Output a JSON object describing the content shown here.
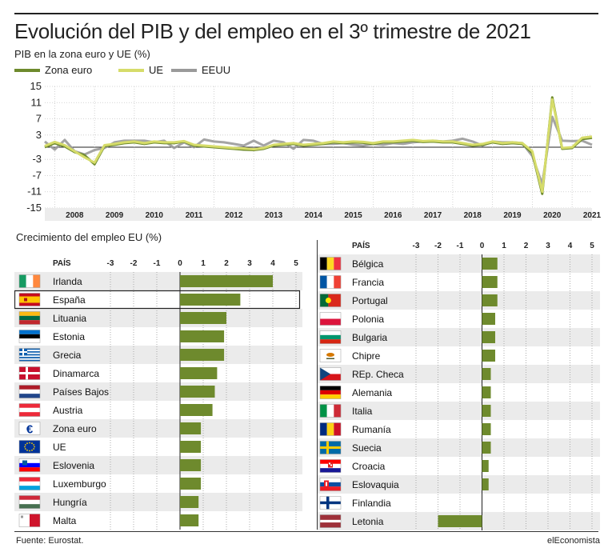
{
  "title": "Evolución del PIB y del empleo en el 3º trimestre de 2021",
  "subtitle": "PIB en la zona euro y UE (%)",
  "employment_title": "Crecimiento del empleo EU (%)",
  "col_header": "PAÍS",
  "source": "Fuente: Eurostat.",
  "brand": "elEconomista",
  "colors": {
    "zona_euro": "#6e8a2d",
    "ue": "#d6dc6a",
    "eeuu": "#9a9a9a",
    "bar": "#6e8a2d",
    "highlight_border": "#222222"
  },
  "chart_data": [
    {
      "type": "line",
      "title": "PIB en la zona euro y UE (%)",
      "x": [
        "2007Q4",
        "2008Q1",
        "2008Q2",
        "2008Q3",
        "2008Q4",
        "2009Q1",
        "2009Q2",
        "2009Q3",
        "2009Q4",
        "2010Q1",
        "2010Q2",
        "2010Q3",
        "2010Q4",
        "2011Q1",
        "2011Q2",
        "2011Q3",
        "2011Q4",
        "2012Q1",
        "2012Q2",
        "2012Q3",
        "2012Q4",
        "2013Q1",
        "2013Q2",
        "2013Q3",
        "2013Q4",
        "2014Q1",
        "2014Q2",
        "2014Q3",
        "2014Q4",
        "2015Q1",
        "2015Q2",
        "2015Q3",
        "2015Q4",
        "2016Q1",
        "2016Q2",
        "2016Q3",
        "2016Q4",
        "2017Q1",
        "2017Q2",
        "2017Q3",
        "2017Q4",
        "2018Q1",
        "2018Q2",
        "2018Q3",
        "2018Q4",
        "2019Q1",
        "2019Q2",
        "2019Q3",
        "2019Q4",
        "2020Q1",
        "2020Q2",
        "2020Q3",
        "2020Q4",
        "2021Q1",
        "2021Q2",
        "2021Q3"
      ],
      "x_tick_labels": [
        "2008",
        "2009",
        "2010",
        "2011",
        "2012",
        "2013",
        "2014",
        "2015",
        "2016",
        "2017",
        "2018",
        "2019",
        "2020",
        "2021"
      ],
      "yticks": [
        15,
        11,
        7,
        3,
        -3,
        -7,
        -11,
        -15
      ],
      "ylim": [
        -15,
        15
      ],
      "series": [
        {
          "name": "Zona euro",
          "values": [
            0.0,
            1.0,
            0.2,
            -1.2,
            -2.0,
            -4.2,
            0.3,
            0.6,
            1.0,
            1.2,
            0.8,
            1.2,
            1.0,
            1.0,
            1.4,
            0.4,
            0.2,
            0.0,
            -0.2,
            -0.4,
            -0.6,
            -0.7,
            -0.4,
            0.4,
            0.6,
            0.8,
            0.4,
            0.6,
            0.8,
            1.2,
            1.0,
            1.2,
            1.1,
            0.8,
            1.2,
            1.2,
            1.4,
            1.6,
            1.3,
            1.4,
            1.2,
            1.2,
            0.8,
            0.4,
            0.6,
            1.2,
            0.8,
            1.0,
            0.8,
            -1.4,
            -11.5,
            12.3,
            -0.4,
            -0.2,
            2.0,
            2.3
          ]
        },
        {
          "name": "UE",
          "values": [
            0.3,
            1.3,
            0.5,
            -1.0,
            -2.5,
            -3.8,
            0.5,
            0.8,
            1.2,
            1.4,
            1.0,
            1.4,
            1.2,
            1.2,
            1.5,
            0.6,
            0.4,
            0.2,
            0.0,
            -0.2,
            -0.3,
            -0.5,
            -0.2,
            0.6,
            0.8,
            1.0,
            0.6,
            0.8,
            1.0,
            1.4,
            1.2,
            1.4,
            1.3,
            1.0,
            1.4,
            1.4,
            1.6,
            1.8,
            1.5,
            1.6,
            1.4,
            1.4,
            1.0,
            0.6,
            0.8,
            1.4,
            1.0,
            1.2,
            1.0,
            -1.0,
            -11.0,
            11.8,
            -0.2,
            0.0,
            2.3,
            2.6
          ]
        },
        {
          "name": "EEUU",
          "values": [
            1.4,
            -0.6,
            1.8,
            -1.0,
            -1.8,
            -0.7,
            -0.2,
            1.2,
            1.6,
            1.6,
            1.6,
            1.2,
            1.6,
            -0.2,
            1.2,
            0.0,
            1.9,
            1.4,
            1.2,
            0.8,
            0.4,
            1.6,
            0.4,
            1.6,
            1.2,
            -0.4,
            1.8,
            1.6,
            0.8,
            0.8,
            1.0,
            0.6,
            0.4,
            0.8,
            0.6,
            1.0,
            0.8,
            1.2,
            1.4,
            1.6,
            1.4,
            1.6,
            2.1,
            1.4,
            0.4,
            1.4,
            1.2,
            1.2,
            1.0,
            -2.2,
            -9.1,
            7.5,
            1.6,
            1.5,
            1.6,
            0.6
          ]
        }
      ],
      "xlabel": "",
      "ylabel": "",
      "legend": "top-left",
      "grid": true
    },
    {
      "type": "bar",
      "orientation": "horizontal",
      "title": "Crecimiento del empleo EU (%)",
      "xticks": [
        "-3",
        "-2",
        "-1",
        "0",
        "1",
        "2",
        "3",
        "4",
        "5"
      ],
      "xlim": [
        -3,
        5
      ],
      "highlight": "España",
      "categories": [
        "Irlanda",
        "España",
        "Lituania",
        "Estonia",
        "Grecia",
        "Dinamarca",
        "Países Bajos",
        "Austria",
        "Zona euro",
        "UE",
        "Eslovenia",
        "Luxemburgo",
        "Hungría",
        "Malta"
      ],
      "values": [
        4.0,
        2.6,
        2.0,
        1.9,
        1.9,
        1.6,
        1.5,
        1.4,
        0.9,
        0.9,
        0.9,
        0.9,
        0.8,
        0.8
      ],
      "flags": [
        "ie",
        "es",
        "lt",
        "ee",
        "gr",
        "dk",
        "nl",
        "at",
        "euro",
        "eu",
        "si",
        "lu",
        "hu",
        "mt"
      ]
    },
    {
      "type": "bar",
      "orientation": "horizontal",
      "xticks": [
        "-3",
        "-2",
        "-1",
        "0",
        "1",
        "2",
        "3",
        "4",
        "5"
      ],
      "xlim": [
        -3,
        5
      ],
      "categories": [
        "Bélgica",
        "Francia",
        "Portugal",
        "Polonia",
        "Bulgaria",
        "Chipre",
        "REp. Checa",
        "Alemania",
        "Italia",
        "Rumanía",
        "Suecia",
        "Croacia",
        "Eslovaquia",
        "Finlandia",
        "Letonia"
      ],
      "values": [
        0.7,
        0.7,
        0.7,
        0.6,
        0.6,
        0.6,
        0.4,
        0.4,
        0.4,
        0.4,
        0.4,
        0.3,
        0.3,
        0.0,
        -2.0
      ],
      "flags": [
        "be",
        "fr",
        "pt",
        "pl",
        "bg",
        "cy",
        "cz",
        "de",
        "it",
        "ro",
        "se",
        "hr",
        "sk",
        "fi",
        "lv"
      ]
    }
  ]
}
